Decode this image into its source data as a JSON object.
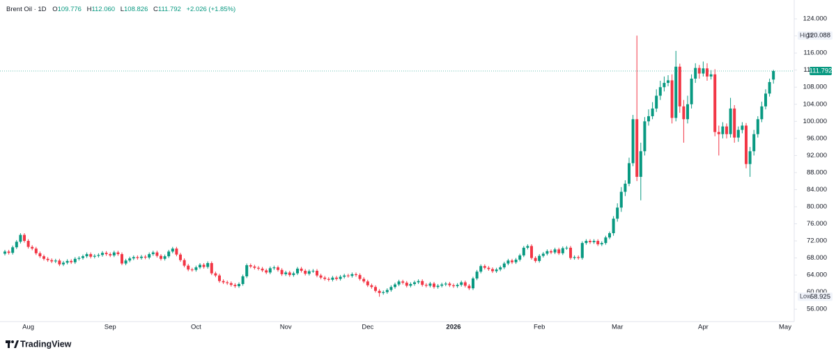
{
  "chart_data": {
    "type": "candlestick",
    "header": {
      "symbol": "Brent Oil · 1D",
      "o_label": "O",
      "o": "109.776",
      "h_label": "H",
      "h": "112.060",
      "l_label": "L",
      "l": "108.826",
      "c_label": "C",
      "c": "111.792",
      "change": "+2.026 (+1.85%)"
    },
    "brand": "TradingView",
    "high_label": "High",
    "low_label": "Low",
    "ylim": [
      53.1,
      127.6
    ],
    "yticks": [
      {
        "value": 56,
        "label": "56.000"
      },
      {
        "value": 60,
        "label": "60.000"
      },
      {
        "value": 64,
        "label": "64.000"
      },
      {
        "value": 68,
        "label": "68.000"
      },
      {
        "value": 72,
        "label": "72.000"
      },
      {
        "value": 76,
        "label": "76.000"
      },
      {
        "value": 80,
        "label": "80.000"
      },
      {
        "value": 84,
        "label": "84.000"
      },
      {
        "value": 88,
        "label": "88.000"
      },
      {
        "value": 92,
        "label": "92.000"
      },
      {
        "value": 96,
        "label": "96.000"
      },
      {
        "value": 100,
        "label": "100.000"
      },
      {
        "value": 104,
        "label": "104.000"
      },
      {
        "value": 108,
        "label": "108.000"
      },
      {
        "value": 112,
        "label": "112.000"
      },
      {
        "value": 116,
        "label": "116.000"
      },
      {
        "value": 120,
        "label": "120.000"
      },
      {
        "value": 124,
        "label": "124.000"
      }
    ],
    "categories": [
      null,
      null,
      null,
      null,
      null,
      null,
      "Aug",
      null,
      null,
      null,
      null,
      null,
      null,
      null,
      null,
      null,
      null,
      null,
      null,
      null,
      null,
      null,
      null,
      null,
      null,
      null,
      null,
      "Sep",
      null,
      null,
      null,
      null,
      null,
      null,
      null,
      null,
      null,
      null,
      null,
      null,
      null,
      null,
      null,
      null,
      null,
      null,
      null,
      null,
      null,
      "Oct",
      null,
      null,
      null,
      null,
      null,
      null,
      null,
      null,
      null,
      null,
      null,
      null,
      null,
      null,
      null,
      null,
      null,
      null,
      null,
      null,
      null,
      null,
      "Nov",
      null,
      null,
      null,
      null,
      null,
      null,
      null,
      null,
      null,
      null,
      null,
      null,
      null,
      null,
      null,
      null,
      null,
      null,
      null,
      null,
      "Dec",
      null,
      null,
      null,
      null,
      null,
      null,
      null,
      null,
      null,
      null,
      null,
      null,
      null,
      null,
      null,
      null,
      null,
      null,
      null,
      null,
      null,
      "2026",
      null,
      null,
      null,
      null,
      null,
      null,
      null,
      null,
      null,
      null,
      null,
      null,
      null,
      null,
      null,
      null,
      null,
      null,
      null,
      null,
      null,
      "Feb",
      null,
      null,
      null,
      null,
      null,
      null,
      null,
      null,
      null,
      null,
      null,
      null,
      null,
      null,
      null,
      null,
      null,
      null,
      null,
      "Mar",
      null,
      null,
      null,
      null,
      null,
      null,
      null,
      null,
      null,
      null,
      null,
      null,
      null,
      null,
      null,
      null,
      null,
      null,
      null,
      null,
      null,
      "Apr",
      null,
      null,
      null,
      null,
      null,
      null,
      null,
      null,
      null,
      null,
      null,
      null,
      null,
      null,
      null,
      null,
      null,
      null,
      null,
      null,
      "May"
    ],
    "series": [
      {
        "name": "Brent Oil",
        "up_color": "#089981",
        "down_color": "#f23645",
        "open": [
          69.0,
          69.5,
          69.2,
          70.5,
          71.8,
          73.4,
          72.0,
          70.6,
          70.2,
          69.1,
          68.4,
          67.8,
          67.5,
          67.2,
          67.4,
          66.5,
          66.9,
          67.3,
          67.0,
          67.8,
          68.0,
          68.4,
          68.9,
          68.3,
          68.5,
          68.7,
          69.2,
          68.9,
          68.6,
          69.3,
          68.9,
          66.7,
          67.4,
          67.9,
          68.2,
          68.0,
          68.3,
          68.1,
          68.9,
          69.3,
          68.5,
          67.8,
          68.4,
          69.5,
          70.2,
          68.8,
          67.5,
          66.2,
          65.3,
          65.2,
          65.8,
          66.4,
          65.9,
          66.8,
          64.4,
          63.9,
          62.6,
          62.3,
          62.1,
          61.7,
          61.4,
          61.9,
          63.7,
          66.3,
          66.0,
          65.7,
          65.5,
          65.1,
          64.6,
          65.6,
          65.8,
          65.2,
          64.2,
          64.6,
          64.0,
          64.4,
          65.5,
          65.0,
          64.3,
          64.9,
          65.0,
          63.9,
          63.4,
          63.1,
          62.9,
          63.4,
          63.1,
          63.6,
          63.9,
          63.8,
          64.2,
          64.0,
          63.1,
          62.5,
          61.6,
          61.2,
          60.3,
          59.8,
          60.0,
          60.5,
          61.2,
          61.8,
          62.5,
          62.2,
          61.5,
          61.9,
          62.3,
          62.6,
          61.7,
          61.5,
          62.0,
          61.2,
          61.5,
          61.8,
          62.0,
          61.6,
          61.4,
          61.7,
          62.3,
          61.5,
          60.9,
          63.2,
          64.8,
          66.1,
          65.7,
          65.4,
          64.9,
          65.3,
          65.8,
          66.7,
          67.4,
          67.0,
          67.6,
          68.6,
          70.4,
          70.8,
          68.0,
          67.3,
          68.5,
          69.0,
          69.6,
          69.3,
          70.0,
          69.1,
          70.3,
          70.4,
          68.0,
          68.2,
          68.0,
          71.5,
          72.0,
          71.7,
          72.0,
          71.2,
          71.5,
          72.8,
          73.8,
          77.2,
          79.8,
          83.5,
          85.4,
          90.2,
          100.5,
          87.0,
          93.0,
          100.0,
          101.2,
          103.0,
          106.0,
          108.0,
          109.0,
          109.6,
          100.8,
          112.8,
          103.5,
          100.5,
          104.0,
          110.0,
          112.5,
          111.2,
          112.4,
          110.5,
          111.0,
          97.5,
          97.0,
          98.8,
          97.0,
          103.0,
          96.2,
          98.0,
          99.0,
          90.0,
          93.0,
          97.0,
          100.5,
          103.5,
          106.5,
          109.776,
          null,
          null,
          null
        ],
        "high": [
          69.9,
          69.9,
          70.9,
          72.2,
          73.8,
          73.8,
          72.4,
          71.0,
          70.6,
          69.5,
          68.8,
          68.2,
          67.9,
          67.8,
          67.8,
          67.3,
          67.7,
          67.7,
          68.2,
          68.4,
          68.8,
          69.3,
          69.3,
          68.9,
          69.1,
          69.6,
          69.6,
          69.3,
          69.7,
          69.7,
          69.3,
          67.8,
          68.3,
          68.6,
          68.6,
          68.7,
          68.7,
          69.3,
          69.7,
          69.7,
          68.9,
          68.8,
          69.9,
          70.6,
          70.6,
          69.2,
          67.9,
          66.6,
          65.7,
          66.2,
          66.8,
          66.8,
          67.2,
          67.2,
          64.8,
          64.3,
          63.0,
          62.7,
          62.5,
          62.1,
          62.3,
          64.1,
          66.7,
          66.7,
          66.4,
          66.1,
          65.9,
          65.5,
          66.0,
          66.2,
          66.2,
          65.6,
          65.0,
          65.0,
          64.8,
          65.9,
          65.9,
          65.4,
          65.3,
          65.4,
          65.4,
          64.3,
          63.8,
          63.5,
          63.8,
          63.8,
          64.0,
          64.3,
          64.3,
          64.6,
          64.6,
          64.4,
          63.5,
          62.9,
          62.0,
          61.6,
          60.7,
          60.4,
          60.9,
          61.6,
          62.2,
          62.9,
          62.9,
          62.6,
          62.3,
          62.7,
          63.0,
          63.0,
          62.1,
          62.4,
          62.4,
          61.9,
          62.2,
          62.4,
          62.4,
          62.0,
          62.1,
          62.7,
          62.7,
          61.9,
          63.6,
          65.2,
          66.5,
          66.5,
          66.1,
          65.8,
          65.7,
          66.2,
          67.1,
          67.8,
          67.8,
          68.0,
          69.0,
          70.8,
          71.2,
          71.2,
          68.4,
          68.9,
          69.4,
          70.0,
          70.0,
          70.4,
          70.4,
          70.7,
          70.8,
          70.8,
          68.6,
          68.6,
          71.9,
          72.4,
          72.4,
          72.4,
          72.4,
          71.9,
          73.2,
          74.2,
          77.8,
          80.8,
          84.6,
          86.2,
          91.5,
          101.5,
          120.088,
          95.0,
          101.0,
          102.8,
          104.5,
          107.5,
          109.5,
          110.5,
          110.8,
          111.0,
          116.5,
          113.5,
          105.0,
          106.0,
          111.0,
          113.6,
          113.2,
          114.0,
          113.6,
          112.0,
          112.2,
          99.0,
          99.8,
          99.5,
          105.5,
          103.8,
          98.8,
          99.8,
          99.6,
          94.0,
          98.0,
          101.2,
          104.6,
          107.5,
          110.0,
          112.06,
          null,
          null,
          null
        ],
        "low": [
          68.6,
          68.8,
          68.8,
          70.1,
          71.4,
          71.6,
          70.2,
          69.8,
          68.7,
          68.0,
          67.4,
          67.1,
          66.8,
          66.8,
          66.1,
          66.1,
          66.5,
          66.6,
          66.6,
          67.4,
          67.6,
          68.0,
          67.9,
          67.9,
          68.1,
          68.3,
          68.5,
          68.2,
          68.2,
          68.5,
          66.3,
          66.3,
          67.0,
          67.5,
          67.6,
          67.6,
          67.7,
          67.7,
          68.5,
          68.1,
          67.4,
          67.4,
          68.0,
          69.1,
          68.4,
          67.1,
          65.8,
          64.9,
          64.8,
          64.8,
          65.4,
          65.5,
          65.5,
          64.0,
          63.5,
          62.2,
          61.9,
          61.7,
          61.3,
          61.0,
          61.0,
          61.5,
          63.3,
          65.6,
          65.3,
          65.1,
          64.7,
          64.2,
          64.2,
          65.2,
          64.8,
          63.8,
          63.8,
          63.6,
          63.6,
          64.0,
          64.6,
          63.9,
          63.9,
          64.5,
          63.5,
          63.0,
          62.7,
          62.5,
          62.5,
          62.7,
          62.7,
          63.2,
          63.4,
          63.4,
          63.6,
          62.7,
          62.1,
          61.2,
          60.8,
          59.9,
          58.925,
          59.4,
          59.6,
          60.1,
          60.8,
          61.4,
          61.8,
          61.1,
          61.1,
          61.5,
          61.9,
          61.3,
          61.1,
          61.1,
          60.8,
          60.8,
          61.1,
          61.4,
          61.2,
          61.0,
          61.0,
          61.3,
          61.1,
          60.5,
          60.5,
          62.8,
          64.4,
          65.3,
          65.0,
          64.5,
          64.5,
          64.9,
          65.4,
          66.3,
          66.6,
          66.6,
          67.2,
          68.2,
          70.0,
          67.6,
          66.9,
          66.9,
          68.1,
          68.6,
          68.9,
          68.9,
          68.7,
          68.7,
          69.9,
          67.6,
          67.6,
          67.6,
          67.6,
          71.1,
          71.3,
          71.3,
          70.8,
          70.8,
          71.1,
          72.4,
          73.2,
          76.5,
          78.8,
          82.5,
          84.8,
          89.5,
          86.0,
          81.5,
          92.0,
          99.0,
          100.5,
          102.2,
          105.0,
          107.0,
          108.2,
          99.5,
          100.0,
          102.0,
          95.0,
          99.5,
          103.0,
          109.0,
          110.0,
          110.5,
          109.5,
          109.8,
          96.5,
          92.0,
          96.0,
          96.0,
          96.2,
          95.0,
          95.2,
          97.2,
          89.0,
          87.0,
          92.0,
          96.2,
          99.8,
          102.8,
          105.8,
          108.826,
          null,
          null,
          null
        ],
        "close": [
          69.5,
          69.2,
          70.5,
          71.8,
          73.4,
          72.0,
          70.6,
          70.2,
          69.1,
          68.4,
          67.8,
          67.5,
          67.2,
          67.4,
          66.5,
          66.9,
          67.3,
          67.0,
          67.8,
          68.0,
          68.4,
          68.9,
          68.3,
          68.5,
          68.7,
          69.2,
          68.9,
          68.6,
          69.3,
          68.9,
          66.7,
          67.4,
          67.9,
          68.2,
          68.0,
          68.3,
          68.1,
          68.9,
          69.3,
          68.5,
          67.8,
          68.4,
          69.5,
          70.2,
          68.8,
          67.5,
          66.2,
          65.3,
          65.2,
          65.8,
          66.4,
          65.9,
          66.8,
          64.4,
          63.9,
          62.6,
          62.3,
          62.1,
          61.7,
          61.4,
          61.9,
          63.7,
          66.3,
          66.0,
          65.7,
          65.5,
          65.1,
          64.6,
          65.6,
          65.8,
          65.2,
          64.2,
          64.6,
          64.0,
          64.4,
          65.5,
          65.0,
          64.3,
          64.9,
          65.0,
          63.9,
          63.4,
          63.1,
          62.9,
          63.4,
          63.1,
          63.6,
          63.9,
          63.8,
          64.2,
          64.0,
          63.1,
          62.5,
          61.6,
          61.2,
          60.3,
          59.8,
          60.0,
          60.5,
          61.2,
          61.8,
          62.5,
          62.2,
          61.5,
          61.9,
          62.3,
          62.6,
          61.7,
          61.5,
          62.0,
          61.2,
          61.5,
          61.8,
          62.0,
          61.6,
          61.4,
          61.7,
          62.3,
          61.5,
          60.9,
          63.2,
          64.8,
          66.1,
          65.7,
          65.4,
          64.9,
          65.3,
          65.8,
          66.7,
          67.4,
          67.0,
          67.6,
          68.6,
          70.4,
          70.8,
          68.0,
          67.3,
          68.5,
          69.0,
          69.6,
          69.3,
          70.0,
          69.1,
          70.3,
          70.4,
          68.0,
          68.2,
          68.0,
          71.5,
          72.0,
          71.7,
          72.0,
          71.2,
          71.5,
          72.8,
          73.8,
          77.2,
          79.8,
          83.5,
          85.4,
          90.2,
          100.5,
          87.0,
          93.0,
          100.0,
          101.2,
          103.0,
          106.0,
          108.0,
          109.0,
          109.6,
          100.8,
          112.8,
          103.5,
          100.5,
          104.0,
          110.0,
          112.5,
          111.2,
          112.4,
          110.5,
          111.0,
          97.5,
          97.0,
          98.8,
          97.0,
          103.0,
          96.2,
          98.0,
          99.0,
          90.0,
          93.0,
          97.0,
          100.5,
          103.5,
          106.5,
          109.2,
          111.792,
          null,
          null,
          null
        ]
      }
    ]
  }
}
